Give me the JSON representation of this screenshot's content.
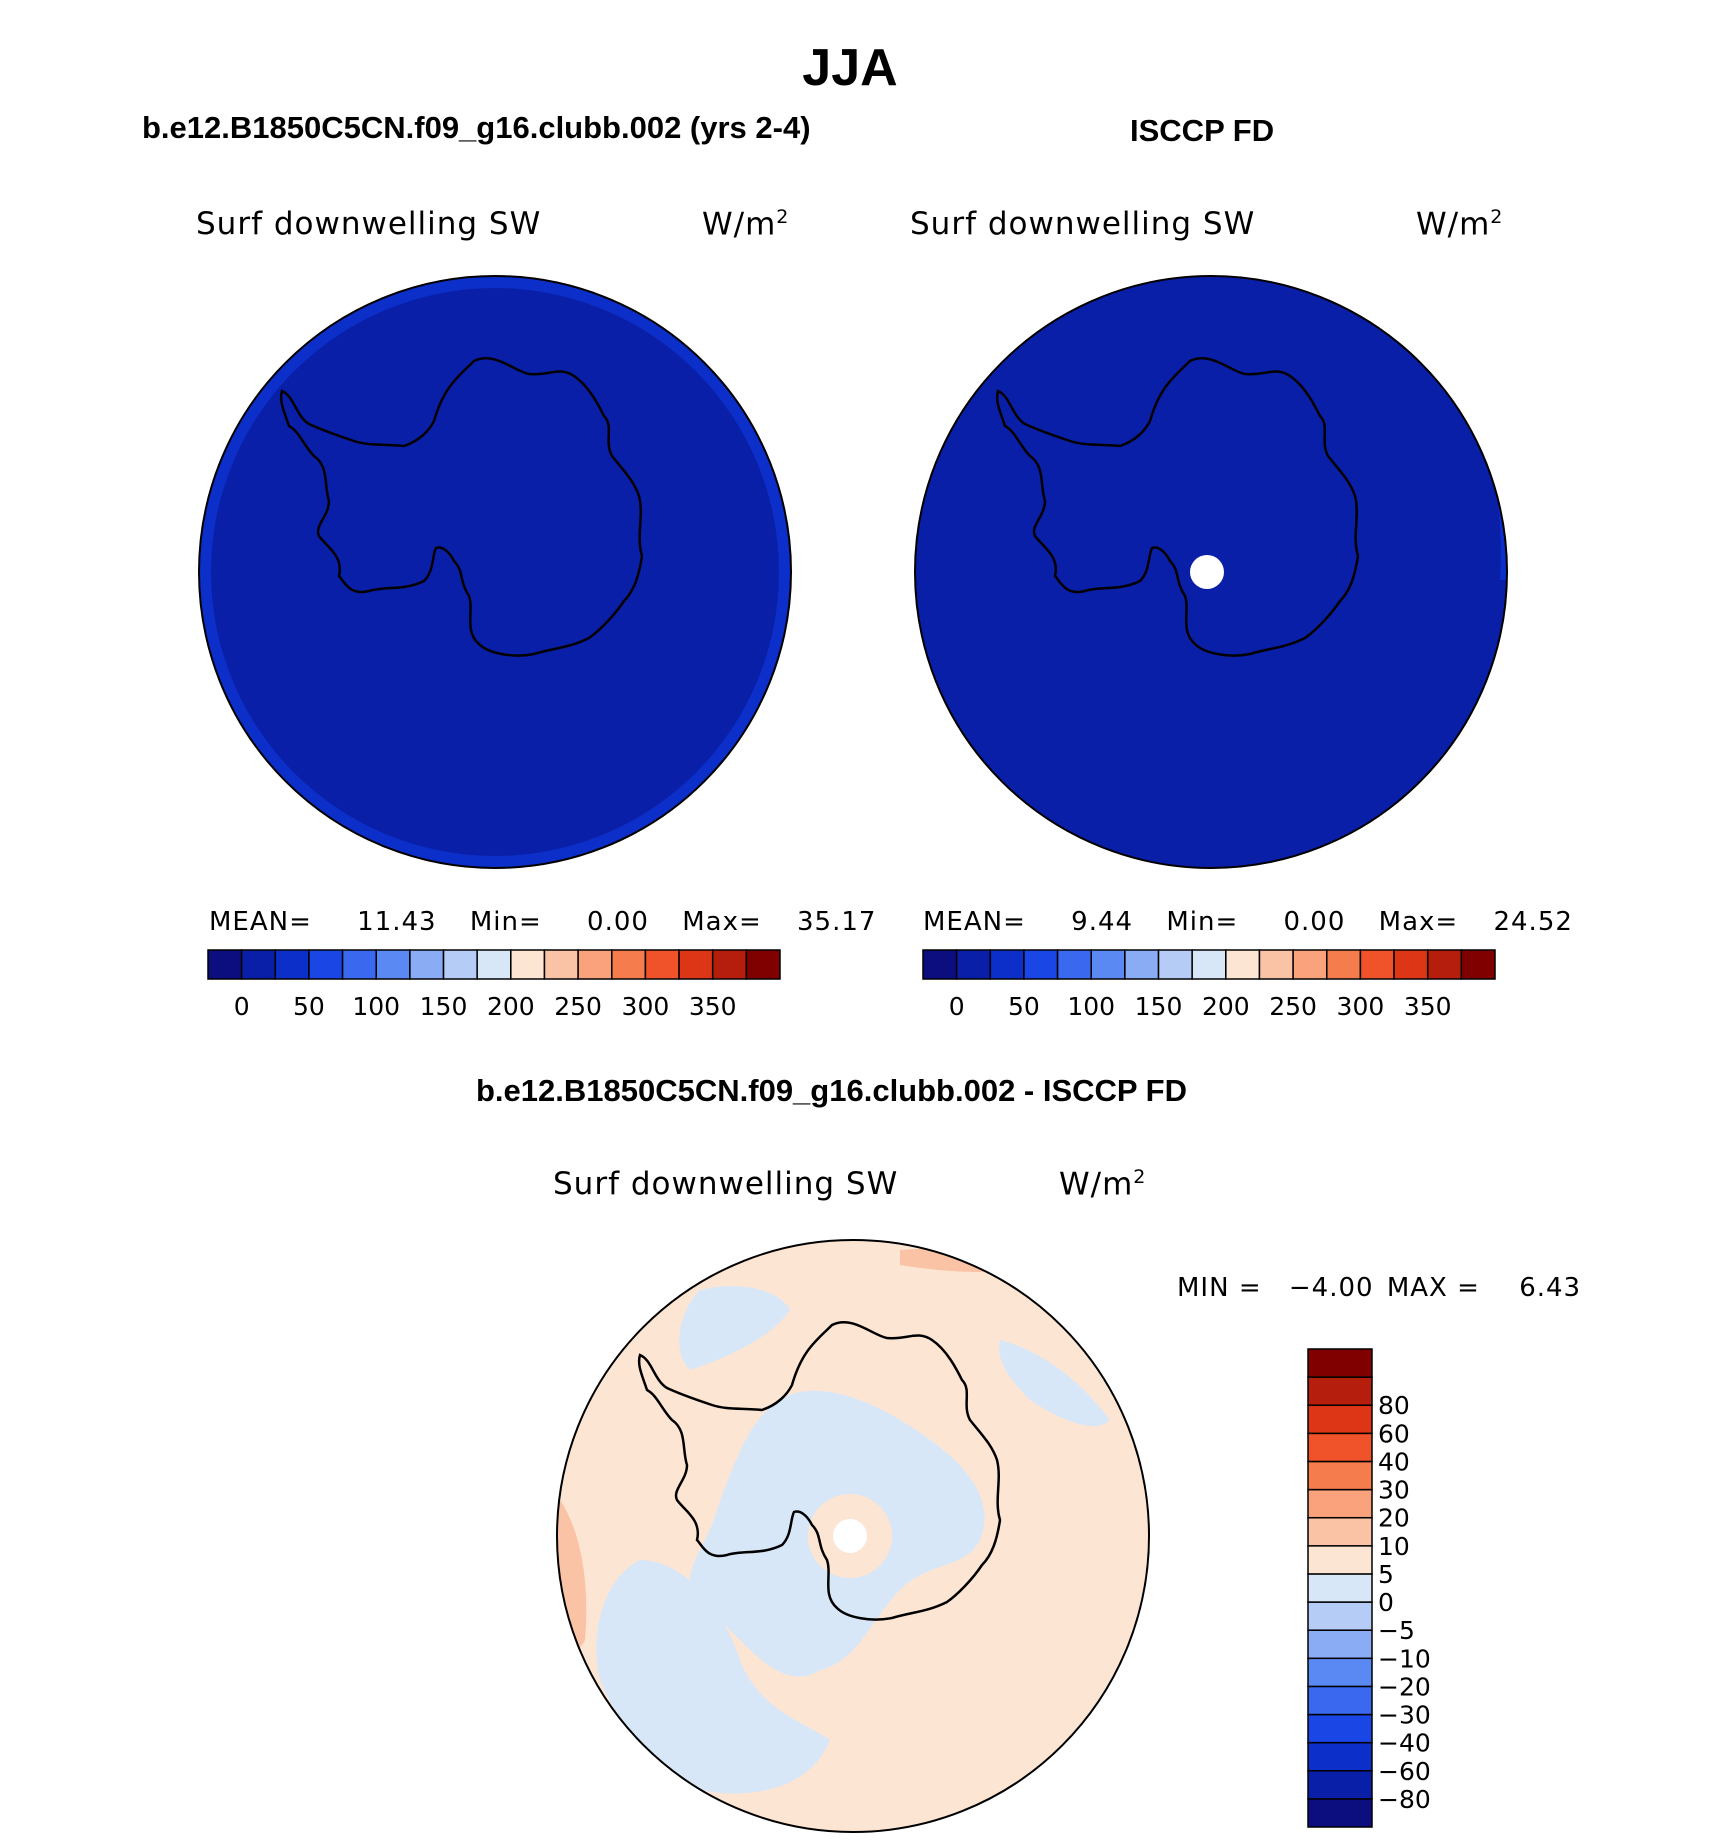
{
  "page": {
    "title": "JJA",
    "left_panel_title": "b.e12.B1850C5CN.f09_g16.clubb.002 (yrs 2-4)",
    "right_panel_title": "ISCCP FD",
    "diff_panel_title": "b.e12.B1850C5CN.f09_g16.clubb.002 - ISCCP FD"
  },
  "chart_data": [
    {
      "type": "heatmap",
      "projection": "south polar stereographic",
      "title": "b.e12.B1850C5CN.f09_g16.clubb.002 (yrs 2-4)",
      "variable": "Surf downwelling SW",
      "units": "W/m2",
      "stats": {
        "mean_label": "MEAN=",
        "mean": "11.43",
        "min_label": "Min=",
        "min": "0.00",
        "max_label": "Max=",
        "max": "35.17"
      },
      "colorbar": {
        "orientation": "horizontal",
        "levels": [
          0,
          25,
          50,
          75,
          100,
          125,
          150,
          175,
          200,
          225,
          250,
          275,
          300,
          325,
          350
        ],
        "tick_labels": [
          "0",
          "50",
          "100",
          "150",
          "200",
          "250",
          "300",
          "350"
        ],
        "colors": [
          "#0c0d7e",
          "#0a1fa8",
          "#0b2fc8",
          "#1b46e6",
          "#3a69f0",
          "#5a89f3",
          "#8aacf5",
          "#b5ccf7",
          "#d8e7f8",
          "#fde5d3",
          "#fbc3a5",
          "#f9a27b",
          "#f57c4c",
          "#f0522a",
          "#dd3616",
          "#b51e0c",
          "#800000"
        ]
      },
      "field_description": "entire domain in 0-25 band, slight 25-50 band near outer edge"
    },
    {
      "type": "heatmap",
      "projection": "south polar stereographic",
      "title": "ISCCP FD",
      "variable": "Surf downwelling SW",
      "units": "W/m2",
      "stats": {
        "mean_label": "MEAN=",
        "mean": "9.44",
        "min_label": "Min=",
        "min": "0.00",
        "max_label": "Max=",
        "max": "24.52"
      },
      "colorbar": {
        "orientation": "horizontal",
        "levels": [
          0,
          25,
          50,
          75,
          100,
          125,
          150,
          175,
          200,
          225,
          250,
          275,
          300,
          325,
          350
        ],
        "tick_labels": [
          "0",
          "50",
          "100",
          "150",
          "200",
          "250",
          "300",
          "350"
        ],
        "colors": [
          "#0c0d7e",
          "#0a1fa8",
          "#0b2fc8",
          "#1b46e6",
          "#3a69f0",
          "#5a89f3",
          "#8aacf5",
          "#b5ccf7",
          "#d8e7f8",
          "#fde5d3",
          "#fbc3a5",
          "#f9a27b",
          "#f57c4c",
          "#f0522a",
          "#dd3616",
          "#b51e0c",
          "#800000"
        ]
      }
    },
    {
      "type": "heatmap",
      "projection": "south polar stereographic",
      "title": "b.e12.B1850C5CN.f09_g16.clubb.002 - ISCCP FD",
      "variable": "Surf downwelling SW",
      "units": "W/m2",
      "stats": {
        "min_label": "MIN =",
        "min": "−4.00",
        "max_label": "MAX =",
        "max": "6.43"
      },
      "colorbar": {
        "orientation": "vertical",
        "levels": [
          -80,
          -60,
          -40,
          -30,
          -20,
          -10,
          -5,
          0,
          5,
          10,
          20,
          30,
          40,
          60,
          80
        ],
        "tick_labels": [
          "−80",
          "−60",
          "−40",
          "−30",
          "−20",
          "−10",
          "−5",
          "0",
          "5",
          "10",
          "20",
          "30",
          "40",
          "60",
          "80"
        ],
        "colors": [
          "#0c0d7e",
          "#0a1fa8",
          "#0b2fc8",
          "#1b46e6",
          "#3a69f0",
          "#5a89f3",
          "#8aacf5",
          "#b5ccf7",
          "#d8e7f8",
          "#fde5d3",
          "#fbc3a5",
          "#f9a27b",
          "#f57c4c",
          "#f0522a",
          "#dd3616",
          "#b51e0c",
          "#800000"
        ]
      }
    }
  ],
  "labels": {
    "variable": "Surf downwelling SW",
    "units_base": "W/m",
    "units_exp": "2"
  }
}
